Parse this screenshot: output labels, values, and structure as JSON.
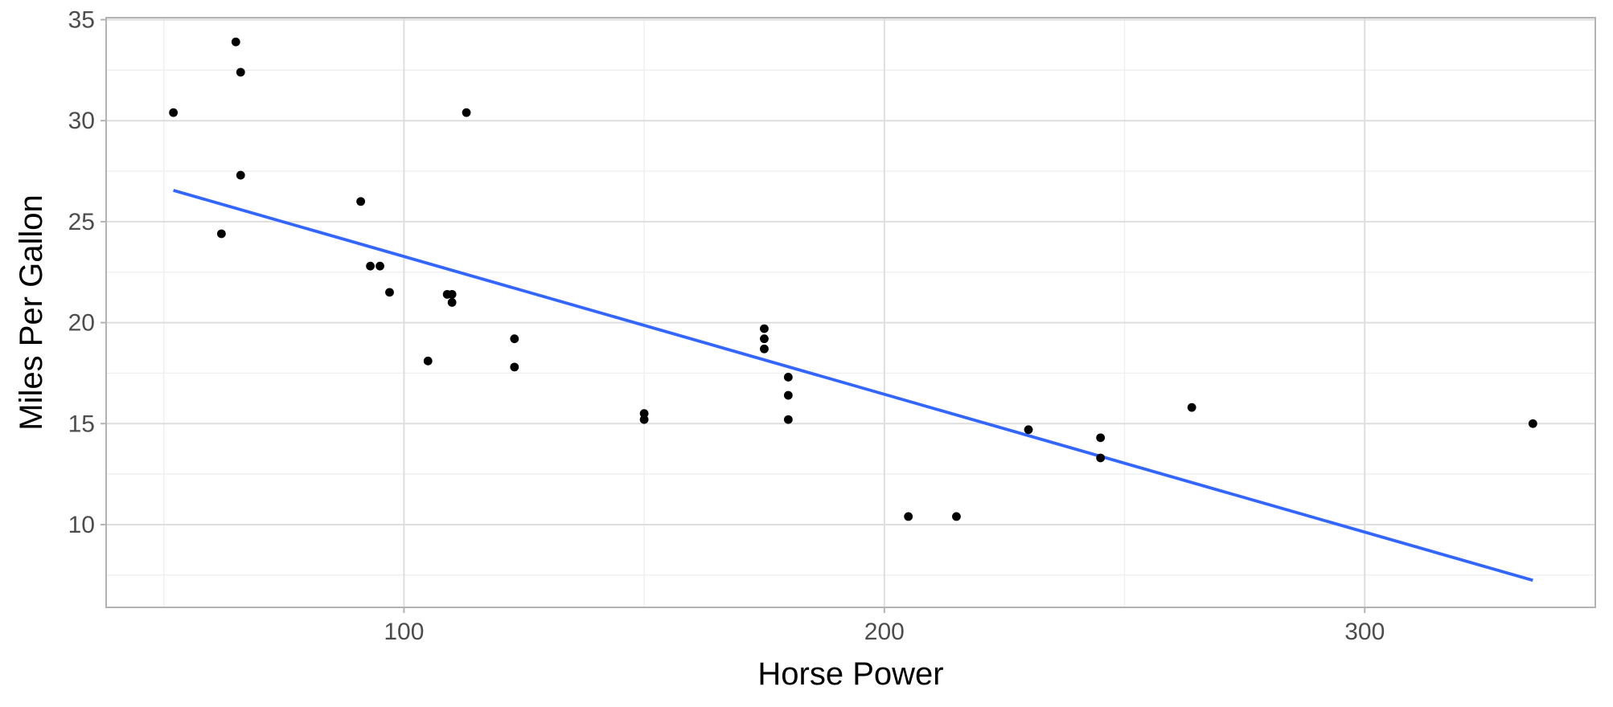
{
  "chart_data": {
    "type": "scatter",
    "title": "",
    "xlabel": "Horse Power",
    "ylabel": "Miles Per Gallon",
    "xlim": [
      38,
      348
    ],
    "ylim": [
      5.9,
      35.1
    ],
    "xticks": [
      100,
      200,
      300
    ],
    "yticks": [
      10,
      15,
      20,
      25,
      30,
      35
    ],
    "grid": true,
    "colors": {
      "points": "#000000",
      "fit_line": "#3366ff",
      "grid_major": "#dedede",
      "grid_minor": "#efefef",
      "panel_border": "#b3b3b3"
    },
    "points": [
      {
        "x": 52,
        "y": 30.4
      },
      {
        "x": 62,
        "y": 24.4
      },
      {
        "x": 65,
        "y": 33.9
      },
      {
        "x": 66,
        "y": 32.4
      },
      {
        "x": 66,
        "y": 27.3
      },
      {
        "x": 91,
        "y": 26.0
      },
      {
        "x": 93,
        "y": 22.8
      },
      {
        "x": 95,
        "y": 22.8
      },
      {
        "x": 97,
        "y": 21.5
      },
      {
        "x": 105,
        "y": 18.1
      },
      {
        "x": 109,
        "y": 21.4
      },
      {
        "x": 110,
        "y": 21.4
      },
      {
        "x": 110,
        "y": 21.0
      },
      {
        "x": 113,
        "y": 30.4
      },
      {
        "x": 123,
        "y": 19.2
      },
      {
        "x": 123,
        "y": 17.8
      },
      {
        "x": 150,
        "y": 15.5
      },
      {
        "x": 150,
        "y": 15.2
      },
      {
        "x": 175,
        "y": 19.7
      },
      {
        "x": 175,
        "y": 19.2
      },
      {
        "x": 175,
        "y": 18.7
      },
      {
        "x": 180,
        "y": 17.3
      },
      {
        "x": 180,
        "y": 16.4
      },
      {
        "x": 180,
        "y": 15.2
      },
      {
        "x": 205,
        "y": 10.4
      },
      {
        "x": 215,
        "y": 10.4
      },
      {
        "x": 230,
        "y": 14.7
      },
      {
        "x": 245,
        "y": 14.3
      },
      {
        "x": 245,
        "y": 13.3
      },
      {
        "x": 264,
        "y": 15.8
      },
      {
        "x": 335,
        "y": 15.0
      }
    ],
    "fit_line": {
      "x": [
        52,
        335
      ],
      "y": [
        26.55,
        7.24
      ]
    }
  }
}
